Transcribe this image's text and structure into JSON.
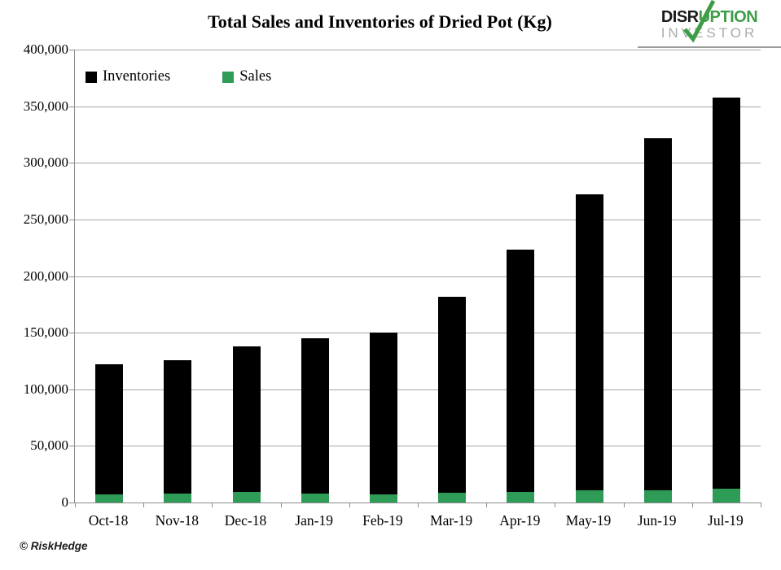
{
  "title": "Total Sales and Inventories of Dried Pot (Kg)",
  "footer": "© RiskHedge",
  "logo": {
    "word_part_black": "DISR",
    "word_part_green": "UPTION",
    "word_line2": "INVESTOR",
    "green": "#3E9C47",
    "gray": "#a8acae"
  },
  "legend": {
    "items": [
      {
        "label": "Inventories",
        "color": "#000000"
      },
      {
        "label": "Sales",
        "color": "#2E9B57"
      }
    ]
  },
  "colors": {
    "bar_inventories": "#000000",
    "bar_sales": "#2E9B57",
    "gridline": "#a6a6a6",
    "axis": "#8c8c8c"
  },
  "chart_data": {
    "type": "bar",
    "stacked": true,
    "title": "Total Sales and Inventories of Dried Pot (Kg)",
    "xlabel": "",
    "ylabel": "",
    "ylim": [
      0,
      400000
    ],
    "ytick_step": 50000,
    "ytick_labels": [
      "400,000",
      "350,000",
      "300,000",
      "250,000",
      "200,000",
      "150,000",
      "100,000",
      "50,000",
      "0"
    ],
    "grid": "horizontal",
    "legend_position": "top-left-inside",
    "categories": [
      "Oct-18",
      "Nov-18",
      "Dec-18",
      "Jan-19",
      "Feb-19",
      "Mar-19",
      "Apr-19",
      "May-19",
      "Jun-19",
      "Jul-19"
    ],
    "series": [
      {
        "name": "Sales",
        "color": "#2E9B57",
        "values": [
          7000,
          8000,
          9000,
          8000,
          7500,
          8500,
          9500,
          11000,
          11000,
          12500
        ]
      },
      {
        "name": "Inventories",
        "color": "#000000",
        "values": [
          115000,
          118000,
          129000,
          137000,
          142500,
          173500,
          213500,
          261000,
          311000,
          345500
        ]
      }
    ],
    "stacked_totals": [
      122000,
      126000,
      138000,
      145000,
      150000,
      182000,
      223000,
      272000,
      322000,
      358000
    ]
  }
}
